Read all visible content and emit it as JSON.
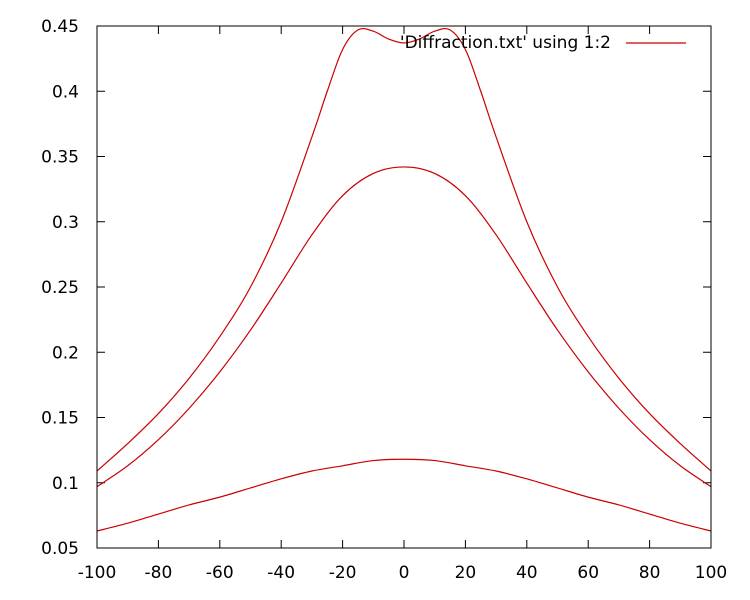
{
  "chart_data": {
    "type": "line",
    "title": "",
    "xlabel": "",
    "ylabel": "",
    "xlim": [
      -100,
      100
    ],
    "ylim": [
      0.05,
      0.45
    ],
    "x_ticks": [
      -100,
      -80,
      -60,
      -40,
      -20,
      0,
      20,
      40,
      60,
      80,
      100
    ],
    "x_tick_labels": [
      "-100",
      "-80",
      "-60",
      "-40",
      "-20",
      "0",
      "20",
      "40",
      "60",
      "80",
      "100"
    ],
    "y_ticks": [
      0.05,
      0.1,
      0.15,
      0.2,
      0.25,
      0.3,
      0.35,
      0.4,
      0.45
    ],
    "y_tick_labels": [
      "0.05",
      "0.1",
      "0.15",
      "0.2",
      "0.25",
      "0.3",
      "0.35",
      "0.4",
      "0.45"
    ],
    "grid": false,
    "legend_position": "top-right",
    "legend": [
      "'Diffraction.txt' using 1:2"
    ],
    "series_color": "#cc0000",
    "series": [
      {
        "x": [
          -100,
          -90,
          -80,
          -70,
          -60,
          -50,
          -40,
          -30,
          -25,
          -20,
          -15,
          -10,
          -5,
          0,
          5,
          10,
          15,
          20,
          25,
          30,
          40,
          50,
          60,
          70,
          80,
          90,
          100
        ],
        "values": [
          0.109,
          0.13,
          0.153,
          0.18,
          0.212,
          0.25,
          0.3,
          0.365,
          0.4,
          0.432,
          0.447,
          0.446,
          0.44,
          0.437,
          0.44,
          0.446,
          0.447,
          0.432,
          0.4,
          0.365,
          0.3,
          0.25,
          0.212,
          0.18,
          0.153,
          0.13,
          0.109
        ]
      },
      {
        "x": [
          -100,
          -90,
          -80,
          -70,
          -60,
          -50,
          -40,
          -30,
          -20,
          -10,
          0,
          10,
          20,
          30,
          40,
          50,
          60,
          70,
          80,
          90,
          100
        ],
        "values": [
          0.097,
          0.113,
          0.133,
          0.157,
          0.185,
          0.217,
          0.253,
          0.29,
          0.32,
          0.337,
          0.342,
          0.337,
          0.32,
          0.29,
          0.253,
          0.217,
          0.185,
          0.157,
          0.133,
          0.113,
          0.097
        ]
      },
      {
        "x": [
          -100,
          -90,
          -80,
          -70,
          -60,
          -50,
          -40,
          -30,
          -20,
          -10,
          0,
          10,
          20,
          30,
          40,
          50,
          60,
          70,
          80,
          90,
          100
        ],
        "values": [
          0.063,
          0.069,
          0.076,
          0.083,
          0.089,
          0.096,
          0.103,
          0.109,
          0.113,
          0.117,
          0.118,
          0.117,
          0.113,
          0.109,
          0.103,
          0.096,
          0.089,
          0.083,
          0.076,
          0.069,
          0.063
        ]
      }
    ]
  }
}
